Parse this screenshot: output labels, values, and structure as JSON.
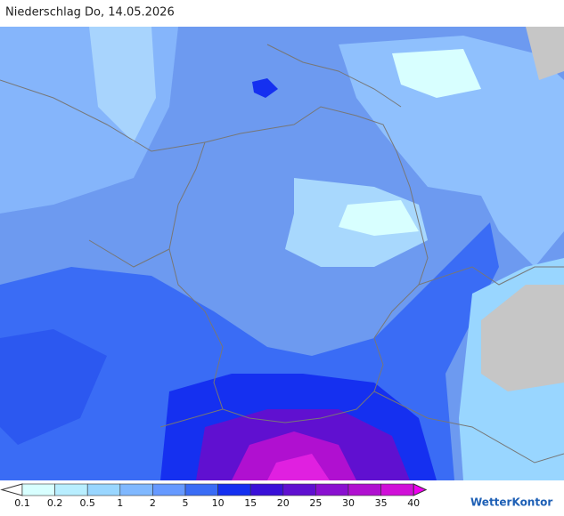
{
  "title": "Niederschlag Do, 14.05.2026",
  "legend": {
    "labels": [
      "0.1",
      "0.2",
      "0.5",
      "1",
      "2",
      "5",
      "10",
      "15",
      "20",
      "25",
      "30",
      "35",
      "40"
    ],
    "colors": [
      "#d8ffff",
      "#b8eeff",
      "#99d6ff",
      "#80b8ff",
      "#6699ff",
      "#3a6cf5",
      "#1530f0",
      "#3a10d8",
      "#6010d0",
      "#8a10d0",
      "#b010d0",
      "#d010d8"
    ],
    "low_color": "#ffffff",
    "high_color": "#f000f0"
  },
  "brand": "WetterKontor"
}
